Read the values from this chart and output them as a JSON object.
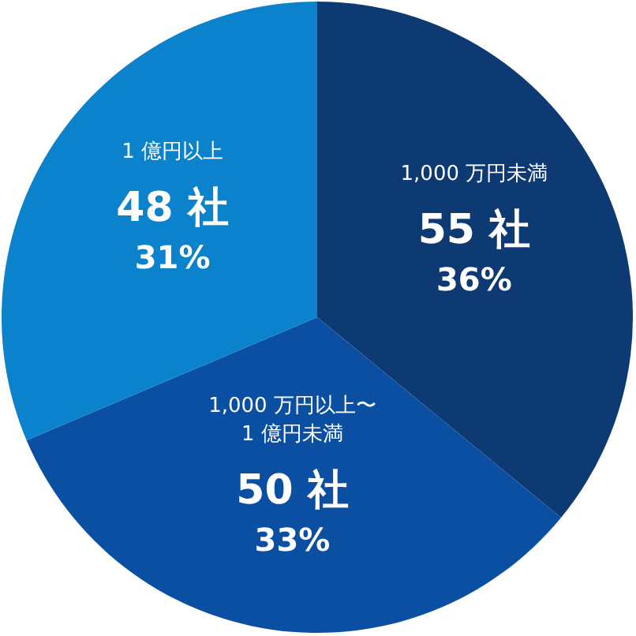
{
  "chart_data": {
    "type": "pie",
    "categories": [
      "1,000 万円未満",
      "1,000 万円以上〜\n1 億円未満",
      "1 億円以上"
    ],
    "values": [
      55,
      50,
      48
    ],
    "value_labels": [
      "55 社",
      "50 社",
      "48 社"
    ],
    "colors": [
      "#0d3a73",
      "#0b4fa2",
      "#0a82cc"
    ],
    "annotations": [
      {
        "text": "36%",
        "x": "1,000 万円未満"
      },
      {
        "text": "33%",
        "x": "1,000 万円以上〜\n1 億円未満"
      },
      {
        "text": "31%",
        "x": "1 億円以上"
      }
    ]
  }
}
